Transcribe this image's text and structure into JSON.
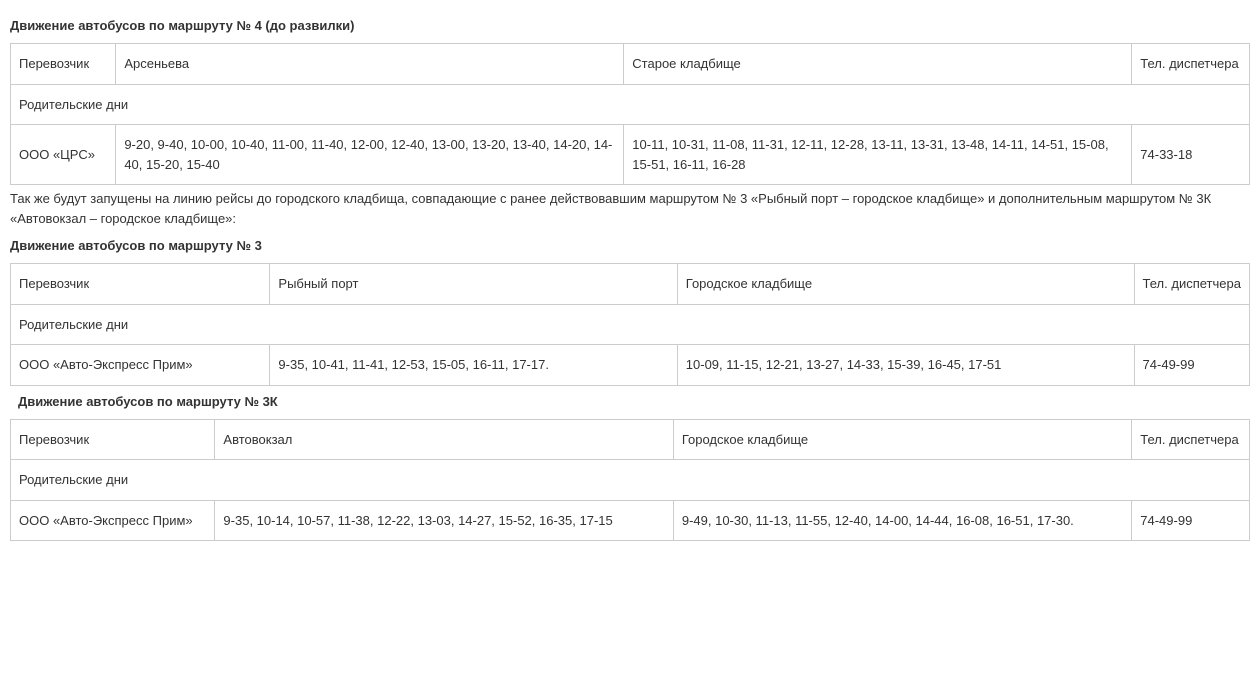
{
  "route4": {
    "heading": "Движение автобусов по маршруту № 4 (до развилки)",
    "columns": [
      "Перевозчик",
      "Арсеньева",
      "Старое кладбище",
      "Тел. диспетчера"
    ],
    "section_label": "Родительские дни",
    "rows": [
      {
        "carrier": "ООО «ЦРС»",
        "stop1": "9-20, 9-40, 10-00, 10-40, 11-00, 11-40, 12-00, 12-40, 13-00, 13-20, 13-40, 14-20, 14-40, 15-20, 15-40",
        "stop2": "10-11, 10-31, 11-08, 11-31, 12-11, 12-28, 13-11, 13-31, 13-48, 14-11, 14-51, 15-08, 15-51, 16-11, 16-28",
        "phone": "74-33-18"
      }
    ]
  },
  "paragraph1": "Так же будут запущены на линию рейсы до городского кладбища, совпадающие с ранее действовавшим маршрутом № 3 «Рыбный порт – городское кладбище» и дополнительным маршрутом № 3К «Автовокзал – городское кладбище»:",
  "route3": {
    "heading": "Движение автобусов по маршруту № 3",
    "columns": [
      "Перевозчик",
      "Рыбный порт",
      "Городское кладбище",
      "Тел. диспетчера"
    ],
    "section_label": "Родительские дни",
    "rows": [
      {
        "carrier": "ООО «Авто-Экспресс Прим»",
        "stop1": "9-35, 10-41, 11-41, 12-53, 15-05, 16-11, 17-17.",
        "stop2": "10-09, 11-15, 12-21, 13-27, 14-33, 15-39, 16-45, 17-51",
        "phone": "74-49-99"
      }
    ]
  },
  "route3k": {
    "heading": "Движение автобусов по маршруту № 3К",
    "columns": [
      "Перевозчик",
      "Автовокзал",
      "Городское кладбище",
      "Тел. диспетчера"
    ],
    "section_label": "Родительские дни",
    "rows": [
      {
        "carrier": "ООО «Авто-Экспресс Прим»",
        "stop1": "9-35, 10-14, 10-57, 11-38, 12-22, 13-03, 14-27, 15-52, 16-35, 17-15",
        "stop2": "9-49, 10-30, 11-13, 11-55, 12-40, 14-00, 14-44, 16-08, 16-51, 17-30.",
        "phone": "74-49-99"
      }
    ]
  },
  "col_widths": {
    "route4": [
      "8.5%",
      "41%",
      "41%",
      "9.5%"
    ],
    "route3": [
      "21%",
      "33%",
      "37%",
      "9%"
    ],
    "route3k": [
      "16.5%",
      "37%",
      "37%",
      "9.5%"
    ]
  }
}
